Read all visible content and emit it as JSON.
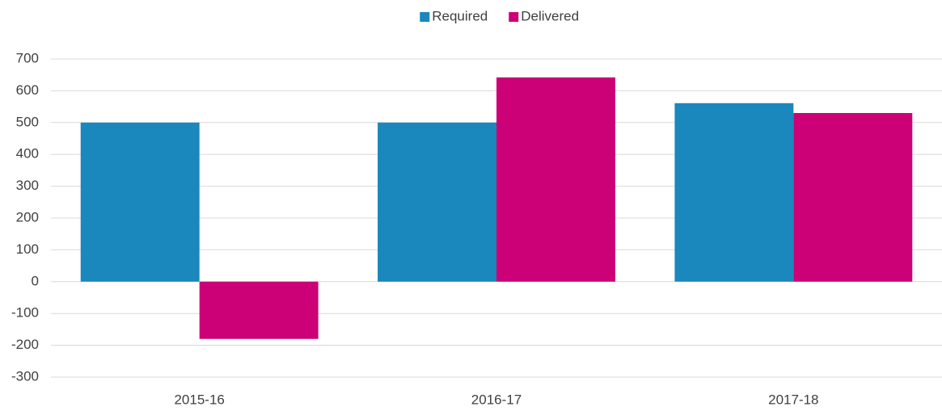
{
  "chart_data": {
    "type": "bar",
    "categories": [
      "2015-16",
      "2016-17",
      "2017-18"
    ],
    "series": [
      {
        "name": "Required",
        "color": "#1a87bd",
        "values": [
          500,
          500,
          561
        ]
      },
      {
        "name": "Delivered",
        "color": "#cc0077",
        "values": [
          -180,
          642,
          530
        ]
      }
    ],
    "ylim": [
      -300,
      700
    ],
    "yticks": [
      -300,
      -200,
      -100,
      0,
      100,
      200,
      300,
      400,
      500,
      600,
      700
    ],
    "grid": true,
    "legend": "top"
  }
}
